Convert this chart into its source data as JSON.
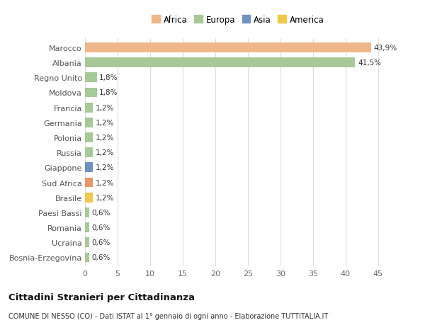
{
  "categories": [
    "Bosnia-Erzegovina",
    "Ucraina",
    "Romania",
    "Paesi Bassi",
    "Brasile",
    "Sud Africa",
    "Giappone",
    "Russia",
    "Polonia",
    "Germania",
    "Francia",
    "Moldova",
    "Regno Unito",
    "Albania",
    "Marocco"
  ],
  "values": [
    0.6,
    0.6,
    0.6,
    0.6,
    1.2,
    1.2,
    1.2,
    1.2,
    1.2,
    1.2,
    1.2,
    1.8,
    1.8,
    41.5,
    43.9
  ],
  "labels": [
    "0,6%",
    "0,6%",
    "0,6%",
    "0,6%",
    "1,2%",
    "1,2%",
    "1,2%",
    "1,2%",
    "1,2%",
    "1,2%",
    "1,2%",
    "1,8%",
    "1,8%",
    "41,5%",
    "43,9%"
  ],
  "colors": [
    "#a8c897",
    "#a8c897",
    "#a8c897",
    "#a8c897",
    "#f0c84a",
    "#e8956a",
    "#7090c0",
    "#a8c897",
    "#a8c897",
    "#a8c897",
    "#a8c897",
    "#a8c897",
    "#a8c897",
    "#a8c897",
    "#f0b88a"
  ],
  "legend_labels": [
    "Africa",
    "Europa",
    "Asia",
    "America"
  ],
  "legend_colors": [
    "#f0b88a",
    "#a8c897",
    "#7090c0",
    "#f0c84a"
  ],
  "title": "Cittadini Stranieri per Cittadinanza",
  "subtitle": "COMUNE DI NESSO (CO) - Dati ISTAT al 1° gennaio di ogni anno - Elaborazione TUTTITALIA.IT",
  "xlim": [
    0,
    47
  ],
  "xticks": [
    0,
    5,
    10,
    15,
    20,
    25,
    30,
    35,
    40,
    45
  ],
  "background_color": "#ffffff",
  "grid_color": "#dddddd",
  "bar_height": 0.65
}
